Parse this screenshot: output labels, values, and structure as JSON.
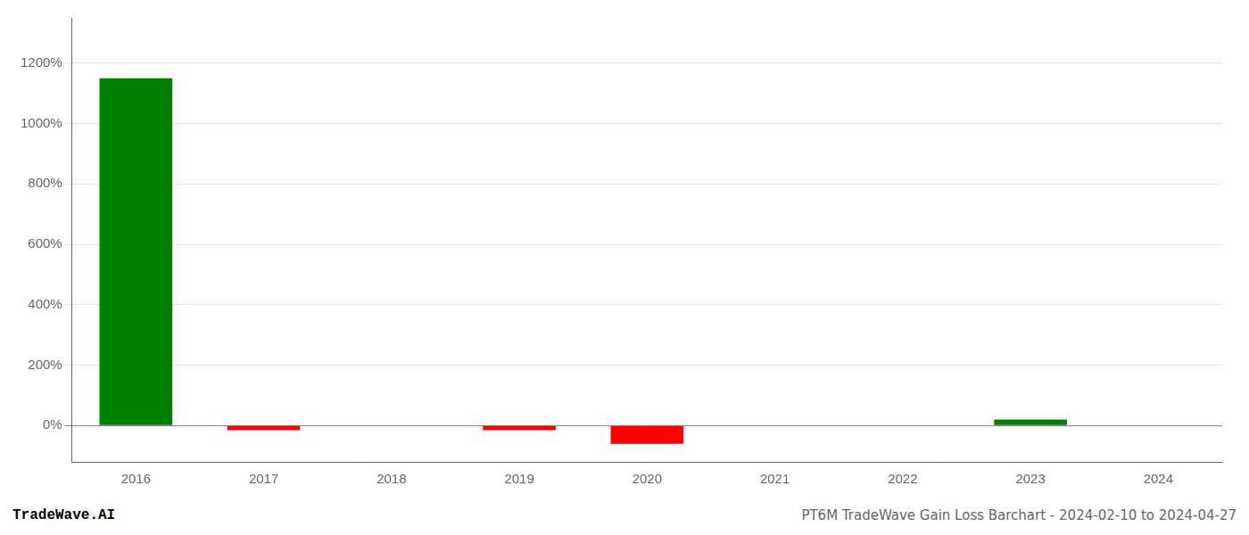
{
  "chart_data": {
    "type": "bar",
    "categories": [
      "2016",
      "2017",
      "2018",
      "2019",
      "2020",
      "2021",
      "2022",
      "2023",
      "2024"
    ],
    "values": [
      1150,
      -15,
      0,
      -15,
      -60,
      0,
      0,
      20,
      0
    ],
    "colors": [
      "#008000",
      "#ff0000",
      "#008000",
      "#ff0000",
      "#ff0000",
      "#008000",
      "#008000",
      "#008000",
      "#008000"
    ],
    "ylim": [
      -120,
      1350
    ],
    "yticks": [
      {
        "value": 0,
        "label": "0%"
      },
      {
        "value": 200,
        "label": "200%"
      },
      {
        "value": 400,
        "label": "400%"
      },
      {
        "value": 600,
        "label": "600%"
      },
      {
        "value": 800,
        "label": "800%"
      },
      {
        "value": 1000,
        "label": "1000%"
      },
      {
        "value": 1200,
        "label": "1200%"
      }
    ],
    "grid": true,
    "annotations": [
      "TradeWave.AI",
      "PT6M TradeWave Gain Loss Barchart - 2024-02-10 to 2024-04-27"
    ]
  }
}
